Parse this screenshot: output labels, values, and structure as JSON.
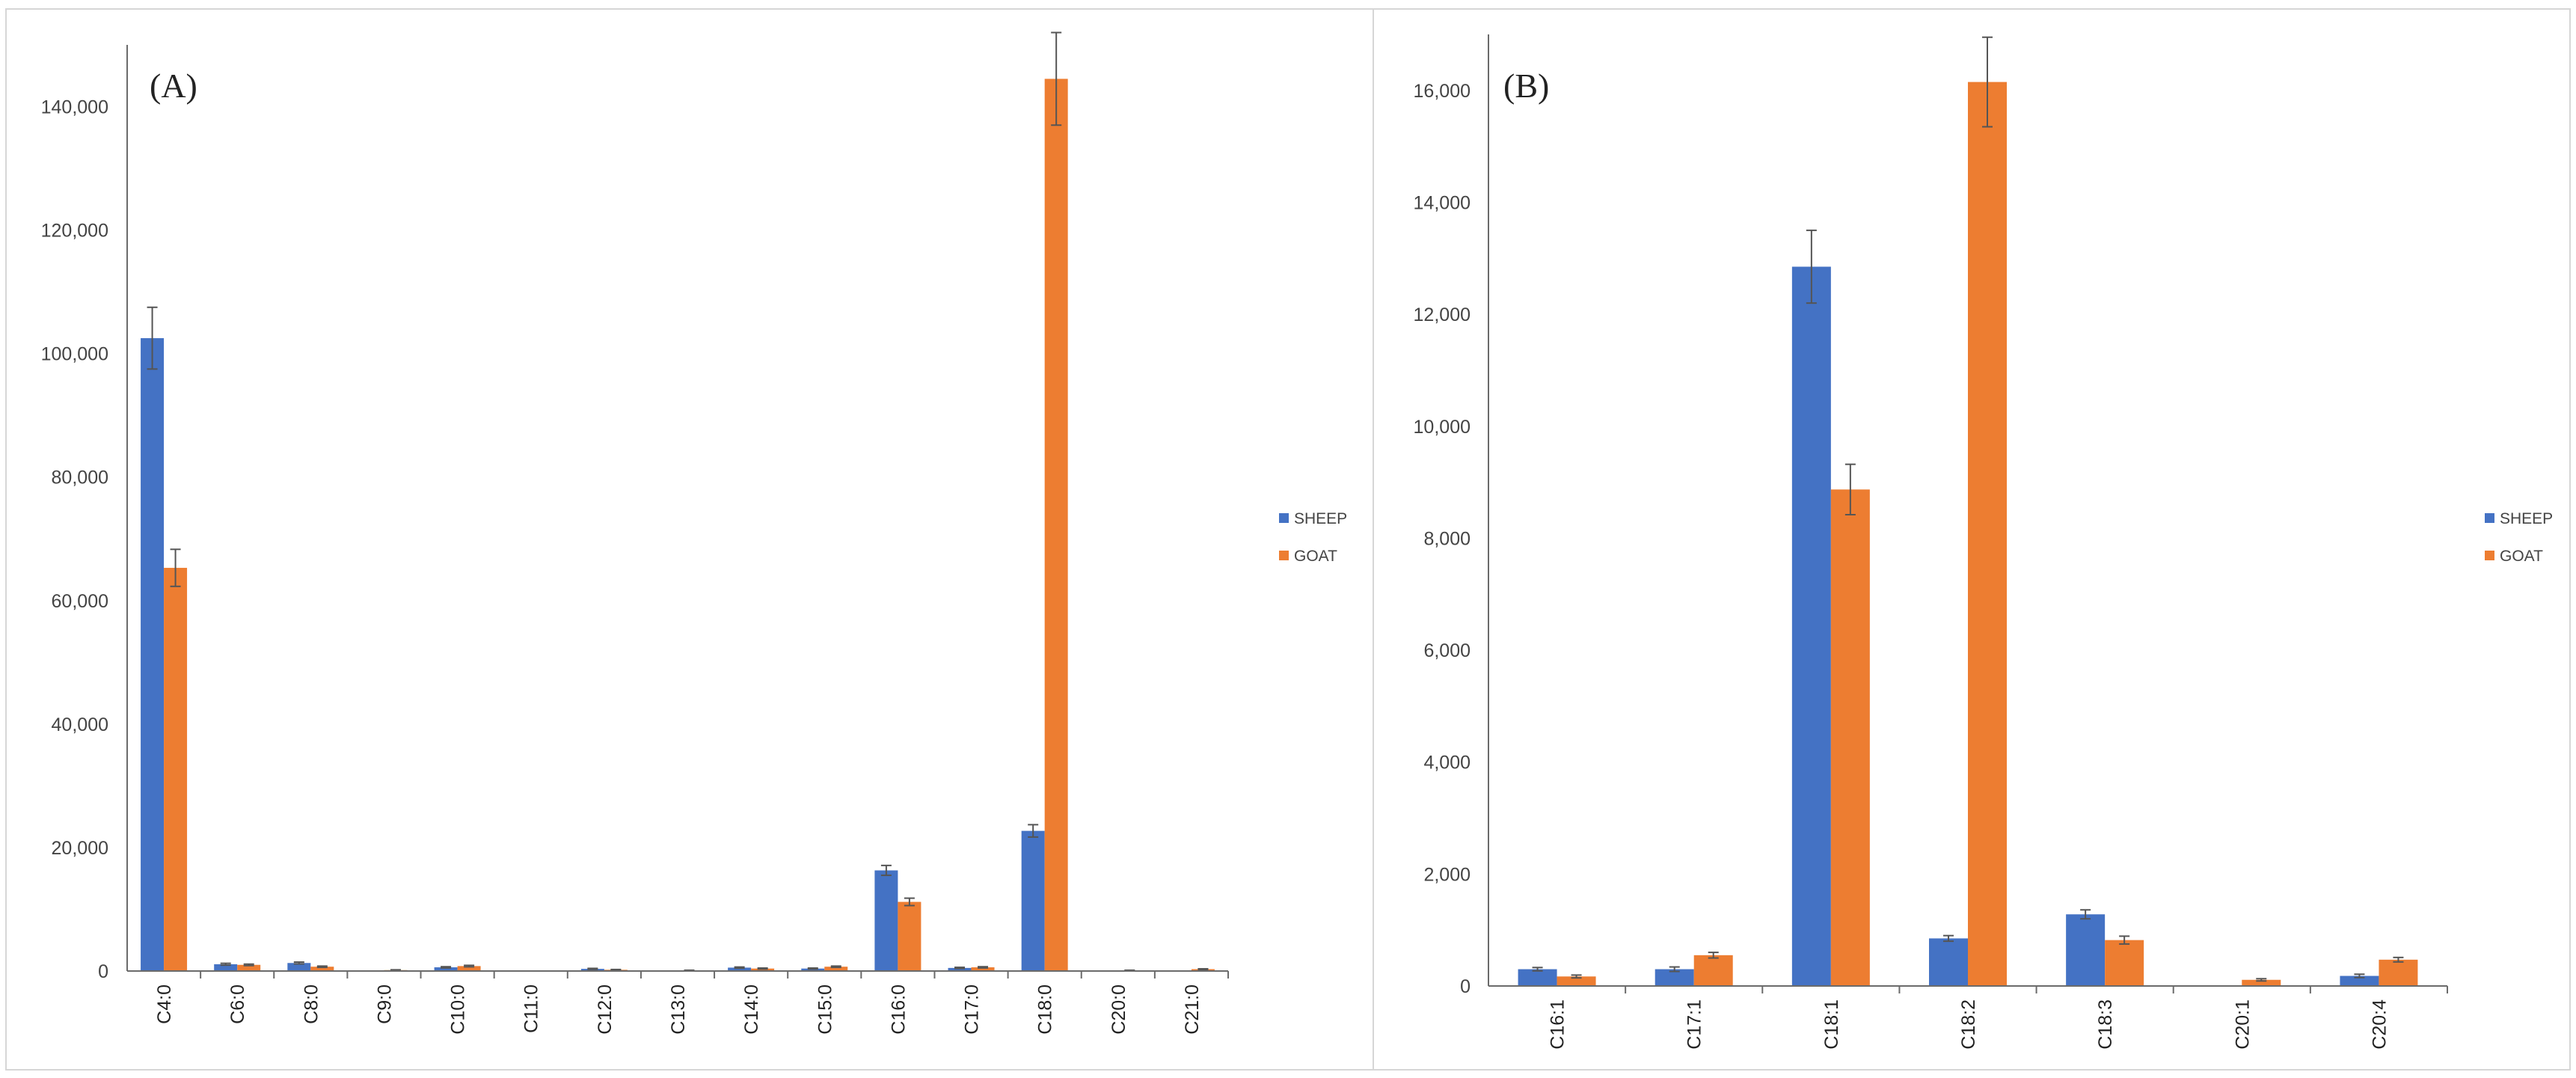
{
  "chart_data": [
    {
      "type": "bar",
      "panel_label": "(A)",
      "title": "",
      "xlabel": "",
      "ylabel": "",
      "ylim": [
        0,
        150000
      ],
      "yticks": [
        0,
        20000,
        40000,
        60000,
        80000,
        100000,
        120000,
        140000
      ],
      "ytick_labels": [
        "0",
        "20,000",
        "40,000",
        "60,000",
        "80,000",
        "100,000",
        "120,000",
        "140,000"
      ],
      "categories": [
        "C4:0",
        "C6:0",
        "C8:0",
        "C9:0",
        "C10:0",
        "C11:0",
        "C12:0",
        "C13:0",
        "C14:0",
        "C15:0",
        "C16:0",
        "C17:0",
        "C18:0",
        "C20:0",
        "C21:0"
      ],
      "series": [
        {
          "name": "SHEEP",
          "color": "#4472C4",
          "values": [
            102500,
            1100,
            1300,
            0,
            600,
            0,
            350,
            0,
            550,
            400,
            16300,
            500,
            22700,
            0,
            0
          ],
          "errors": [
            5000,
            150,
            150,
            0,
            100,
            0,
            80,
            0,
            100,
            80,
            800,
            100,
            1000,
            0,
            0
          ]
        },
        {
          "name": "GOAT",
          "color": "#ED7D31",
          "values": [
            65300,
            1000,
            700,
            150,
            800,
            0,
            200,
            100,
            400,
            700,
            11200,
            600,
            144500,
            100,
            300
          ],
          "errors": [
            3000,
            120,
            100,
            50,
            120,
            0,
            50,
            30,
            80,
            100,
            600,
            100,
            7500,
            30,
            60
          ]
        }
      ],
      "legend": "right"
    },
    {
      "type": "bar",
      "panel_label": "(B)",
      "title": "",
      "xlabel": "",
      "ylabel": "",
      "ylim": [
        0,
        17000
      ],
      "yticks": [
        0,
        2000,
        4000,
        6000,
        8000,
        10000,
        12000,
        14000,
        16000
      ],
      "ytick_labels": [
        "0",
        "2,000",
        "4,000",
        "6,000",
        "8,000",
        "10,000",
        "12,000",
        "14,000",
        "16,000"
      ],
      "categories": [
        "C16:1",
        "C17:1",
        "C18:1",
        "C18:2",
        "C18:3",
        "C20:1",
        "C20:4"
      ],
      "series": [
        {
          "name": "SHEEP",
          "color": "#4472C4",
          "values": [
            300,
            300,
            12850,
            850,
            1280,
            0,
            180
          ],
          "errors": [
            30,
            40,
            650,
            50,
            80,
            0,
            30
          ]
        },
        {
          "name": "GOAT",
          "color": "#ED7D31",
          "values": [
            170,
            550,
            8870,
            16150,
            820,
            110,
            470
          ],
          "errors": [
            25,
            50,
            450,
            800,
            70,
            20,
            40
          ]
        }
      ],
      "legend": "right"
    }
  ]
}
